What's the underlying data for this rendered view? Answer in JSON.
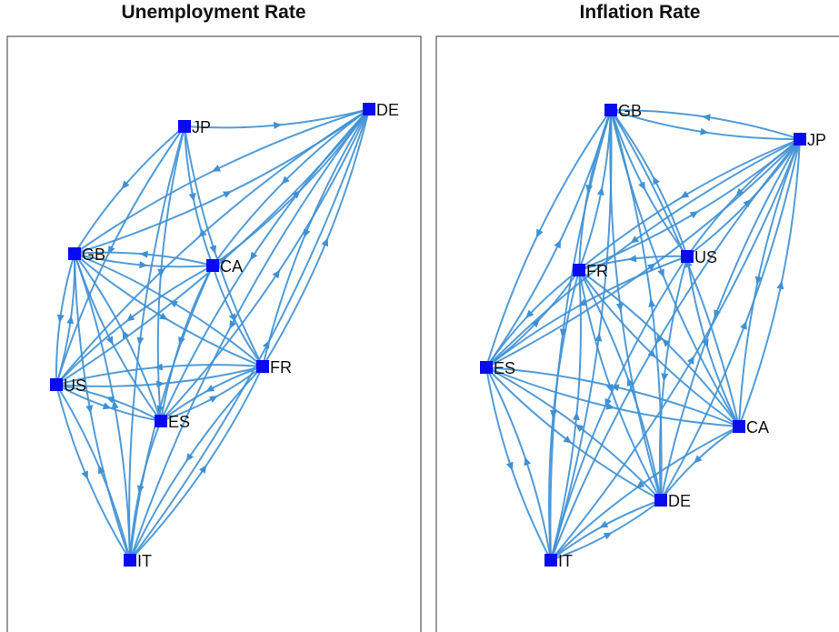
{
  "panels": [
    {
      "title": "Unemployment Rate",
      "nodes": [
        {
          "label": "JP"
        },
        {
          "label": "DE"
        },
        {
          "label": "GB"
        },
        {
          "label": "CA"
        },
        {
          "label": "FR"
        },
        {
          "label": "US"
        },
        {
          "label": "ES"
        },
        {
          "label": "IT"
        }
      ]
    },
    {
      "title": "Inflation Rate",
      "nodes": [
        {
          "label": "GB"
        },
        {
          "label": "JP"
        },
        {
          "label": "US"
        },
        {
          "label": "FR"
        },
        {
          "label": "ES"
        },
        {
          "label": "CA"
        },
        {
          "label": "DE"
        },
        {
          "label": "IT"
        }
      ]
    }
  ]
}
